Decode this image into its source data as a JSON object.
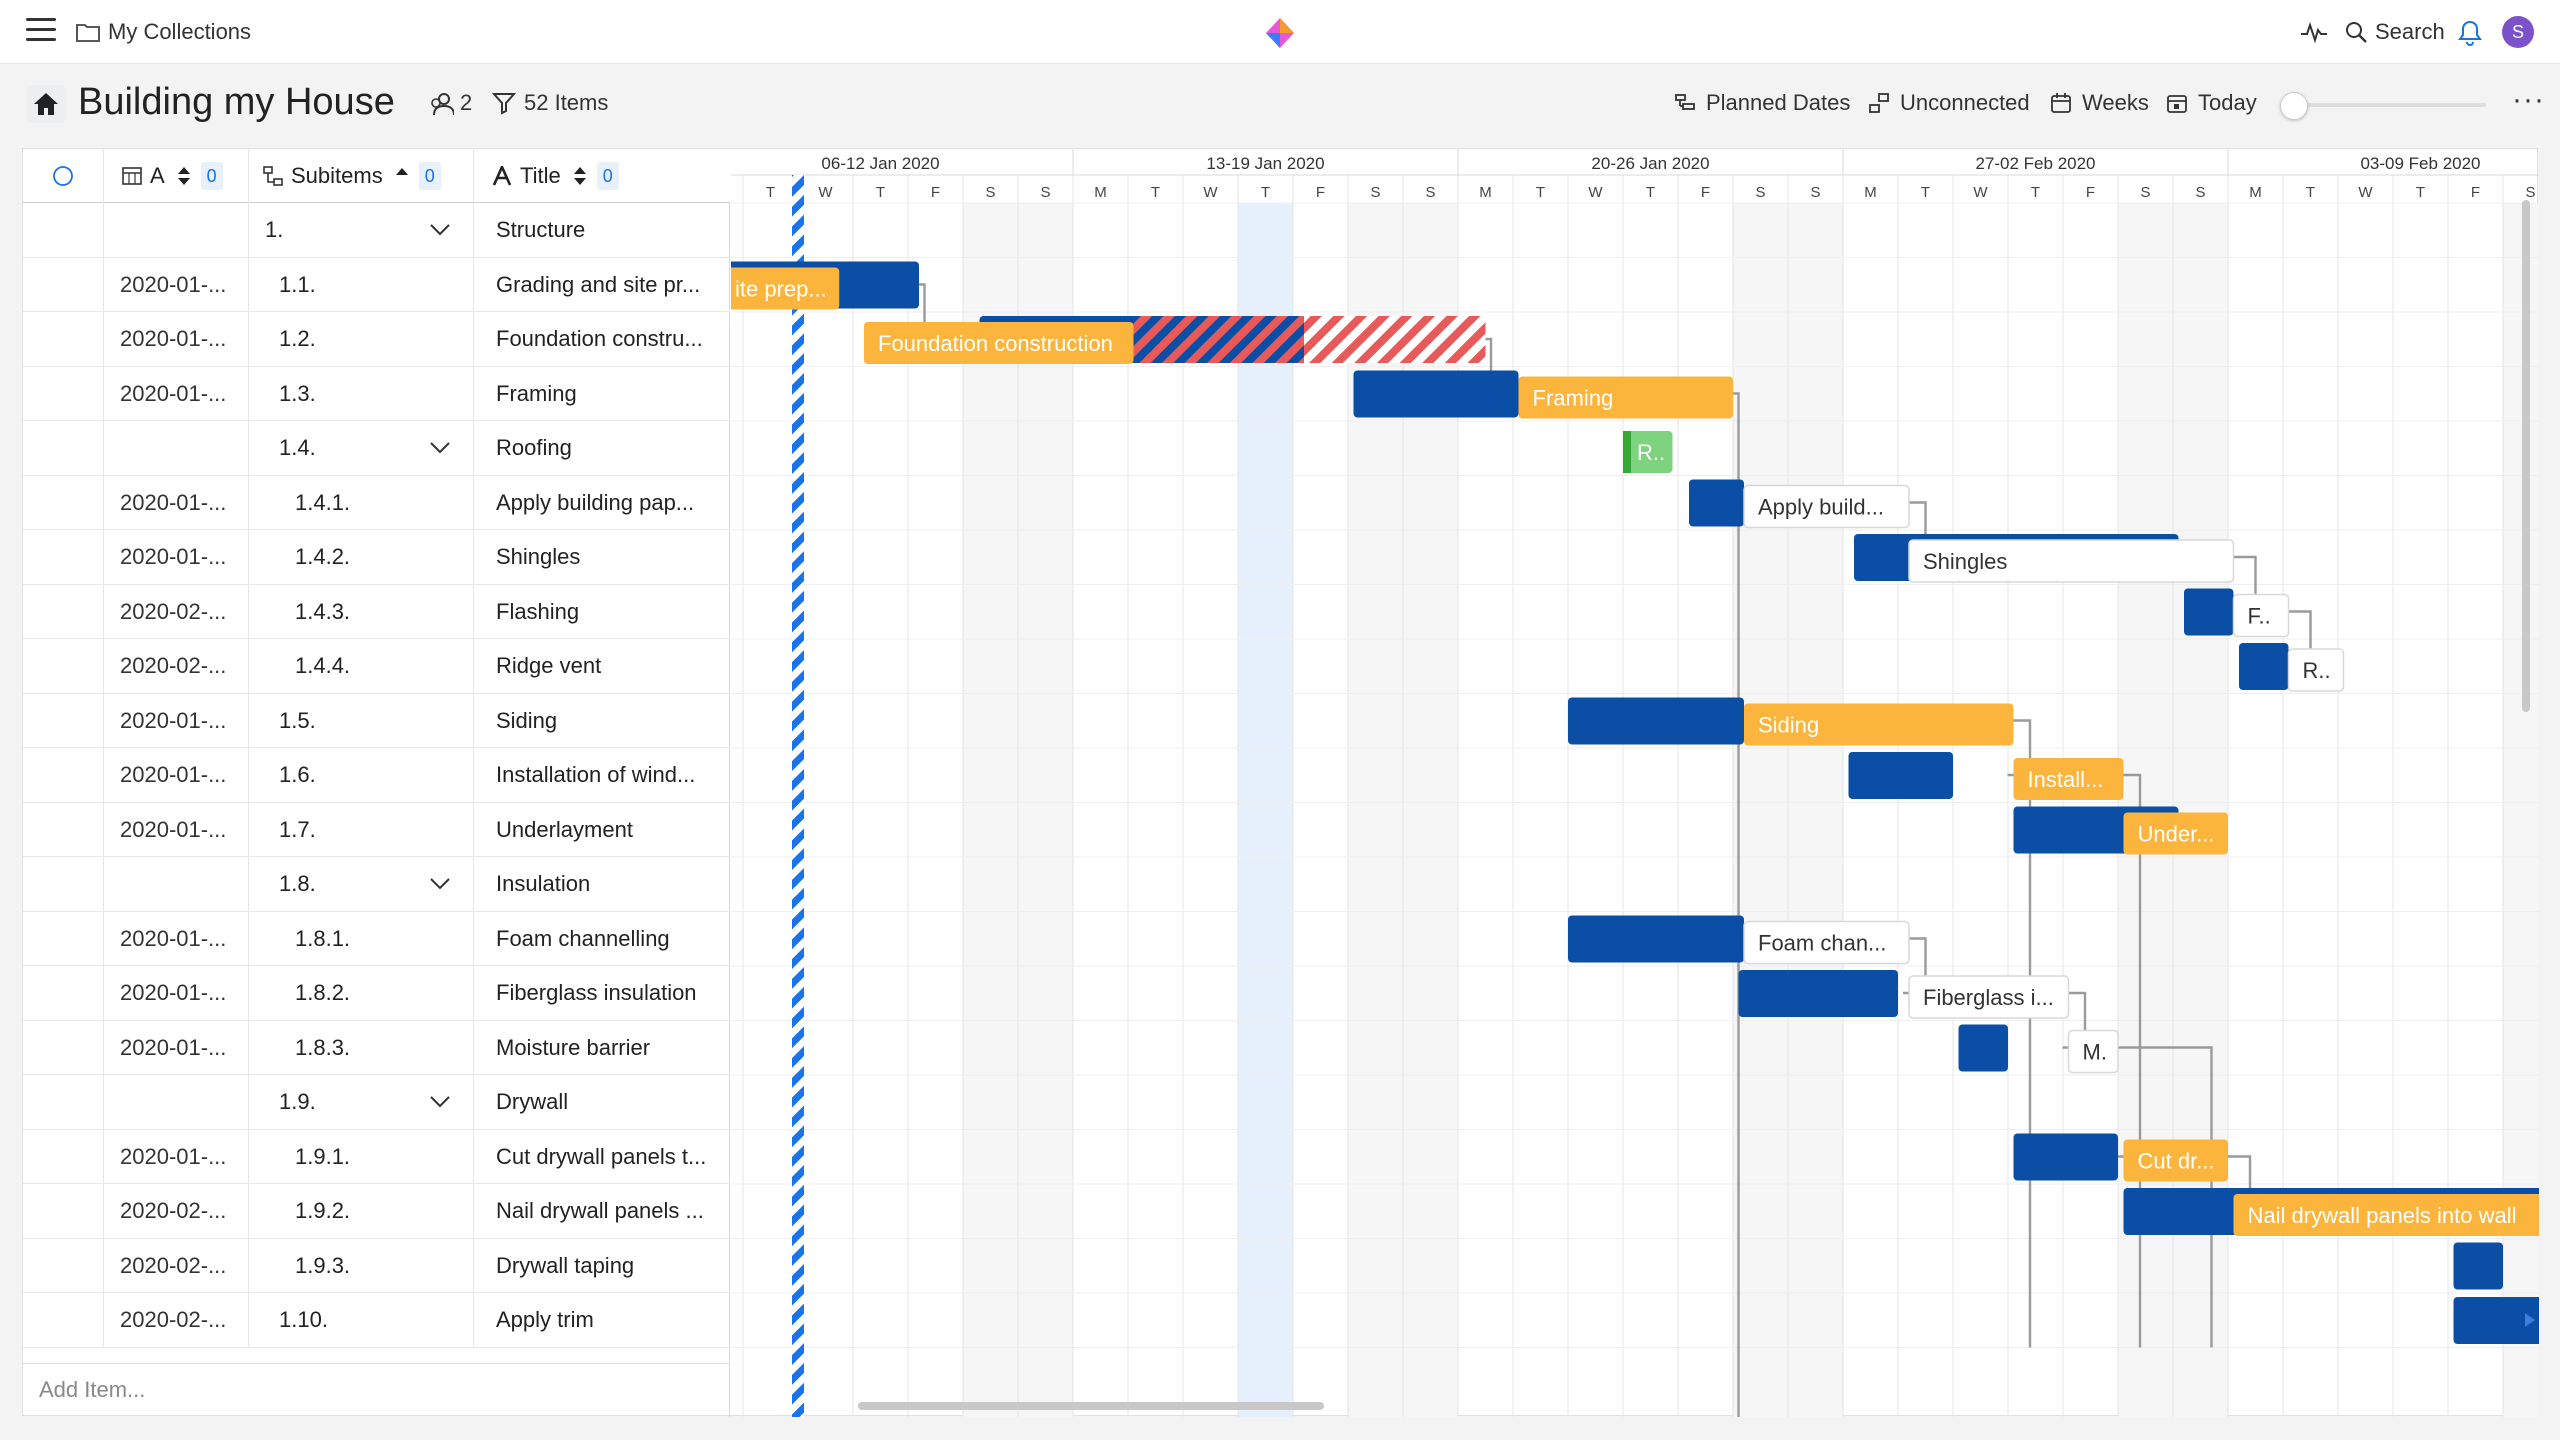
{
  "app": {
    "breadcrumb": "My Collections",
    "search_label": "Search",
    "avatar_initial": "S"
  },
  "titlebar": {
    "title": "Building my House",
    "members_count": "2",
    "items_count": "52 Items",
    "tools": [
      "Planned Dates",
      "Unconnected",
      "Weeks",
      "Today"
    ]
  },
  "columns": {
    "date": "A",
    "subitems": "Subitems",
    "title": "Title",
    "date_count": "0",
    "subitems_count": "0",
    "title_count": "0"
  },
  "rows": [
    {
      "date": "",
      "num": "1.",
      "title": "Structure",
      "expandable": true,
      "level": 0
    },
    {
      "date": "2020-01-...",
      "num": "1.1.",
      "title": "Grading and site pr...",
      "level": 1
    },
    {
      "date": "2020-01-...",
      "num": "1.2.",
      "title": "Foundation constru...",
      "level": 1
    },
    {
      "date": "2020-01-...",
      "num": "1.3.",
      "title": "Framing",
      "level": 1
    },
    {
      "date": "",
      "num": "1.4.",
      "title": "Roofing",
      "expandable": true,
      "level": 1
    },
    {
      "date": "2020-01-...",
      "num": "1.4.1.",
      "title": "Apply building pap...",
      "level": 2
    },
    {
      "date": "2020-01-...",
      "num": "1.4.2.",
      "title": "Shingles",
      "level": 2
    },
    {
      "date": "2020-02-...",
      "num": "1.4.3.",
      "title": "Flashing",
      "level": 2
    },
    {
      "date": "2020-02-...",
      "num": "1.4.4.",
      "title": "Ridge vent",
      "level": 2
    },
    {
      "date": "2020-01-...",
      "num": "1.5.",
      "title": "Siding",
      "level": 1
    },
    {
      "date": "2020-01-...",
      "num": "1.6.",
      "title": "Installation of wind...",
      "level": 1
    },
    {
      "date": "2020-01-...",
      "num": "1.7.",
      "title": "Underlayment",
      "level": 1
    },
    {
      "date": "",
      "num": "1.8.",
      "title": "Insulation",
      "expandable": true,
      "level": 1
    },
    {
      "date": "2020-01-...",
      "num": "1.8.1.",
      "title": "Foam channelling",
      "level": 2
    },
    {
      "date": "2020-01-...",
      "num": "1.8.2.",
      "title": "Fiberglass insulation",
      "level": 2
    },
    {
      "date": "2020-01-...",
      "num": "1.8.3.",
      "title": "Moisture barrier",
      "level": 2
    },
    {
      "date": "",
      "num": "1.9.",
      "title": "Drywall",
      "expandable": true,
      "level": 1
    },
    {
      "date": "2020-01-...",
      "num": "1.9.1.",
      "title": "Cut drywall panels t...",
      "level": 2
    },
    {
      "date": "2020-02-...",
      "num": "1.9.2.",
      "title": "Nail drywall panels ...",
      "level": 2
    },
    {
      "date": "2020-02-...",
      "num": "1.9.3.",
      "title": "Drywall taping",
      "level": 2
    },
    {
      "date": "2020-02-...",
      "num": "1.10.",
      "title": "Apply trim",
      "level": 1
    }
  ],
  "add_item_placeholder": "Add Item...",
  "timeline": {
    "weeks": [
      "06-12 Jan 2020",
      "13-19 Jan 2020",
      "20-26 Jan 2020",
      "27-02 Feb 2020",
      "03-09 Feb 2020"
    ],
    "days": [
      "T",
      "W",
      "T",
      "F",
      "S",
      "S",
      "M",
      "T",
      "W",
      "T",
      "F",
      "S",
      "S",
      "M",
      "T",
      "W",
      "T",
      "F",
      "S",
      "S",
      "M",
      "T",
      "W",
      "T",
      "F",
      "S",
      "S",
      "M",
      "T",
      "W",
      "T",
      "F",
      "S"
    ]
  },
  "bars": [
    {
      "row": 1,
      "planned": [
        -1,
        3.2
      ],
      "actual": [
        -1,
        1.75
      ],
      "label": "ite prep...",
      "label_color": "#ffffff",
      "fill": "#fbb53d"
    },
    {
      "row": 2,
      "planned": [
        4.3,
        10.2
      ],
      "actual": [
        2.2,
        7.1
      ],
      "label": "Foundation construction",
      "label_color": "#ffffff",
      "fill": "#fbb53d",
      "overdue": [
        7.1,
        13.5
      ]
    },
    {
      "row": 3,
      "planned": [
        11.1,
        14.1
      ],
      "actual": [
        14.1,
        18.0
      ],
      "label": "Framing",
      "label_color": "#ffffff",
      "fill": "#fbb53d"
    },
    {
      "row": 4,
      "planned": null,
      "actual": [
        16.0,
        16.9
      ],
      "label": "R..",
      "label_color": "#ffffff",
      "fill": "#7ed37e"
    },
    {
      "row": 5,
      "planned": [
        17.2,
        18.2
      ],
      "actual": [
        18.2,
        21.2
      ],
      "label": "Apply build...",
      "label_color": "#333333",
      "fill": "#ffffff"
    },
    {
      "row": 6,
      "planned": [
        20.2,
        26.1
      ],
      "actual": [
        21.2,
        27.1
      ],
      "label": "Shingles",
      "label_color": "#333333",
      "fill": "#ffffff"
    },
    {
      "row": 7,
      "planned": [
        26.2,
        27.1
      ],
      "actual": [
        27.1,
        28.1
      ],
      "label": "F..",
      "label_color": "#333333",
      "fill": "#ffffff"
    },
    {
      "row": 8,
      "planned": [
        27.2,
        28.1
      ],
      "actual": [
        28.1,
        29.1
      ],
      "label": "R..",
      "label_color": "#333333",
      "fill": "#ffffff"
    },
    {
      "row": 9,
      "planned": [
        15.0,
        18.2
      ],
      "actual": [
        18.2,
        23.1
      ],
      "label": "Siding",
      "label_color": "#ffffff",
      "fill": "#fbb53d"
    },
    {
      "row": 10,
      "planned": [
        20.1,
        22.0
      ],
      "actual": [
        23.1,
        25.1
      ],
      "label": "Install...",
      "label_color": "#ffffff",
      "fill": "#fbb53d"
    },
    {
      "row": 11,
      "planned": [
        23.1,
        26.1
      ],
      "actual": [
        25.1,
        27.0
      ],
      "label": "Under...",
      "label_color": "#ffffff",
      "fill": "#fbb53d"
    },
    {
      "row": 13,
      "planned": [
        15.0,
        18.2
      ],
      "actual": [
        18.2,
        21.2
      ],
      "label": "Foam chan...",
      "label_color": "#333333",
      "fill": "#ffffff"
    },
    {
      "row": 14,
      "planned": [
        18.1,
        21.0
      ],
      "actual": [
        21.2,
        24.1
      ],
      "label": "Fiberglass i...",
      "label_color": "#333333",
      "fill": "#ffffff"
    },
    {
      "row": 15,
      "planned": [
        22.1,
        23.0
      ],
      "actual": [
        24.1,
        25.0
      ],
      "label": "M.",
      "label_color": "#333333",
      "fill": "#ffffff"
    },
    {
      "row": 17,
      "planned": [
        23.1,
        25.0
      ],
      "actual": [
        25.1,
        27.0
      ],
      "label": "Cut dr...",
      "label_color": "#ffffff",
      "fill": "#fbb53d"
    },
    {
      "row": 18,
      "planned": [
        25.1,
        33.0
      ],
      "actual": [
        27.1,
        33.0
      ],
      "label": "Nail drywall panels into wall",
      "label_color": "#ffffff",
      "fill": "#fbb53d"
    },
    {
      "row": 19,
      "planned": [
        31.1,
        32.0
      ],
      "actual": null,
      "label": "",
      "label_color": "#333333",
      "fill": "#ffffff"
    },
    {
      "row": 20,
      "planned": [
        31.1,
        33.0
      ],
      "actual": null,
      "label": "",
      "label_color": "#333333",
      "fill": "#ffffff"
    }
  ],
  "colors": {
    "planned": "#0a4ea6",
    "actual": "#fbb53d",
    "accent": "#1a73e8",
    "overdue": "#e85a5a",
    "today_week": "#e6f0fc"
  }
}
